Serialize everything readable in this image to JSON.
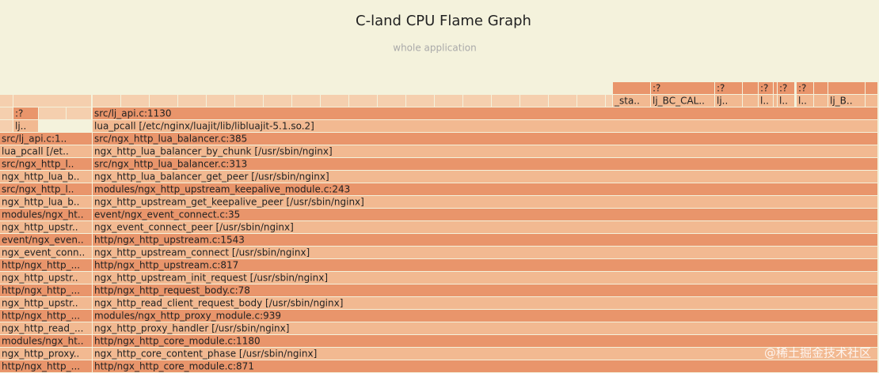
{
  "header": {
    "title": "C-land CPU Flame Graph",
    "subtitle": "whole application"
  },
  "rows": [
    [
      "http/ngx_http_...",
      "http/ngx_http_core_module.c:871"
    ],
    [
      "ngx_http_proxy..",
      "ngx_http_core_content_phase [/usr/sbin/nginx]"
    ],
    [
      "modules/ngx_ht..",
      "http/ngx_http_core_module.c:1180"
    ],
    [
      "ngx_http_read_...",
      "ngx_http_proxy_handler [/usr/sbin/nginx]"
    ],
    [
      "http/ngx_http_...",
      "modules/ngx_http_proxy_module.c:939"
    ],
    [
      "ngx_http_upstr..",
      "ngx_http_read_client_request_body [/usr/sbin/nginx]"
    ],
    [
      "http/ngx_http_...",
      "http/ngx_http_request_body.c:78"
    ],
    [
      "ngx_http_upstr..",
      "ngx_http_upstream_init_request [/usr/sbin/nginx]"
    ],
    [
      "http/ngx_http_...",
      "http/ngx_http_upstream.c:817"
    ],
    [
      "ngx_event_conn..",
      "ngx_http_upstream_connect [/usr/sbin/nginx]"
    ],
    [
      "event/ngx_even..",
      "http/ngx_http_upstream.c:1543"
    ],
    [
      "ngx_http_upstr..",
      "ngx_event_connect_peer [/usr/sbin/nginx]"
    ],
    [
      "modules/ngx_ht..",
      "event/ngx_event_connect.c:35"
    ],
    [
      "ngx_http_lua_b..",
      "ngx_http_upstream_get_keepalive_peer [/usr/sbin/nginx]"
    ],
    [
      "src/ngx_http_l..",
      "modules/ngx_http_upstream_keepalive_module.c:243"
    ],
    [
      "ngx_http_lua_b..",
      "ngx_http_lua_balancer_get_peer [/usr/sbin/nginx]"
    ],
    [
      "src/ngx_http_l..",
      "src/ngx_http_lua_balancer.c:313"
    ],
    [
      "lua_pcall [/et..",
      "ngx_http_lua_balancer_by_chunk [/usr/sbin/nginx]"
    ],
    [
      "src/lj_api.c:1..",
      "src/ngx_http_lua_balancer.c:385"
    ],
    [
      "lj..",
      "lua_pcall [/etc/nginx/luajit/lib/libluajit-5.1.so.2]"
    ],
    [
      ":?",
      "src/lj_api.c:1130"
    ],
    [
      "_sta..",
      "lj_BC_CAL..",
      "lj..",
      "l..",
      "l..",
      "l..",
      "lj_B.."
    ],
    [
      ":?",
      ":?",
      ":?",
      ":?",
      ":?"
    ]
  ],
  "watermark": "@稀土掘金技术社区"
}
